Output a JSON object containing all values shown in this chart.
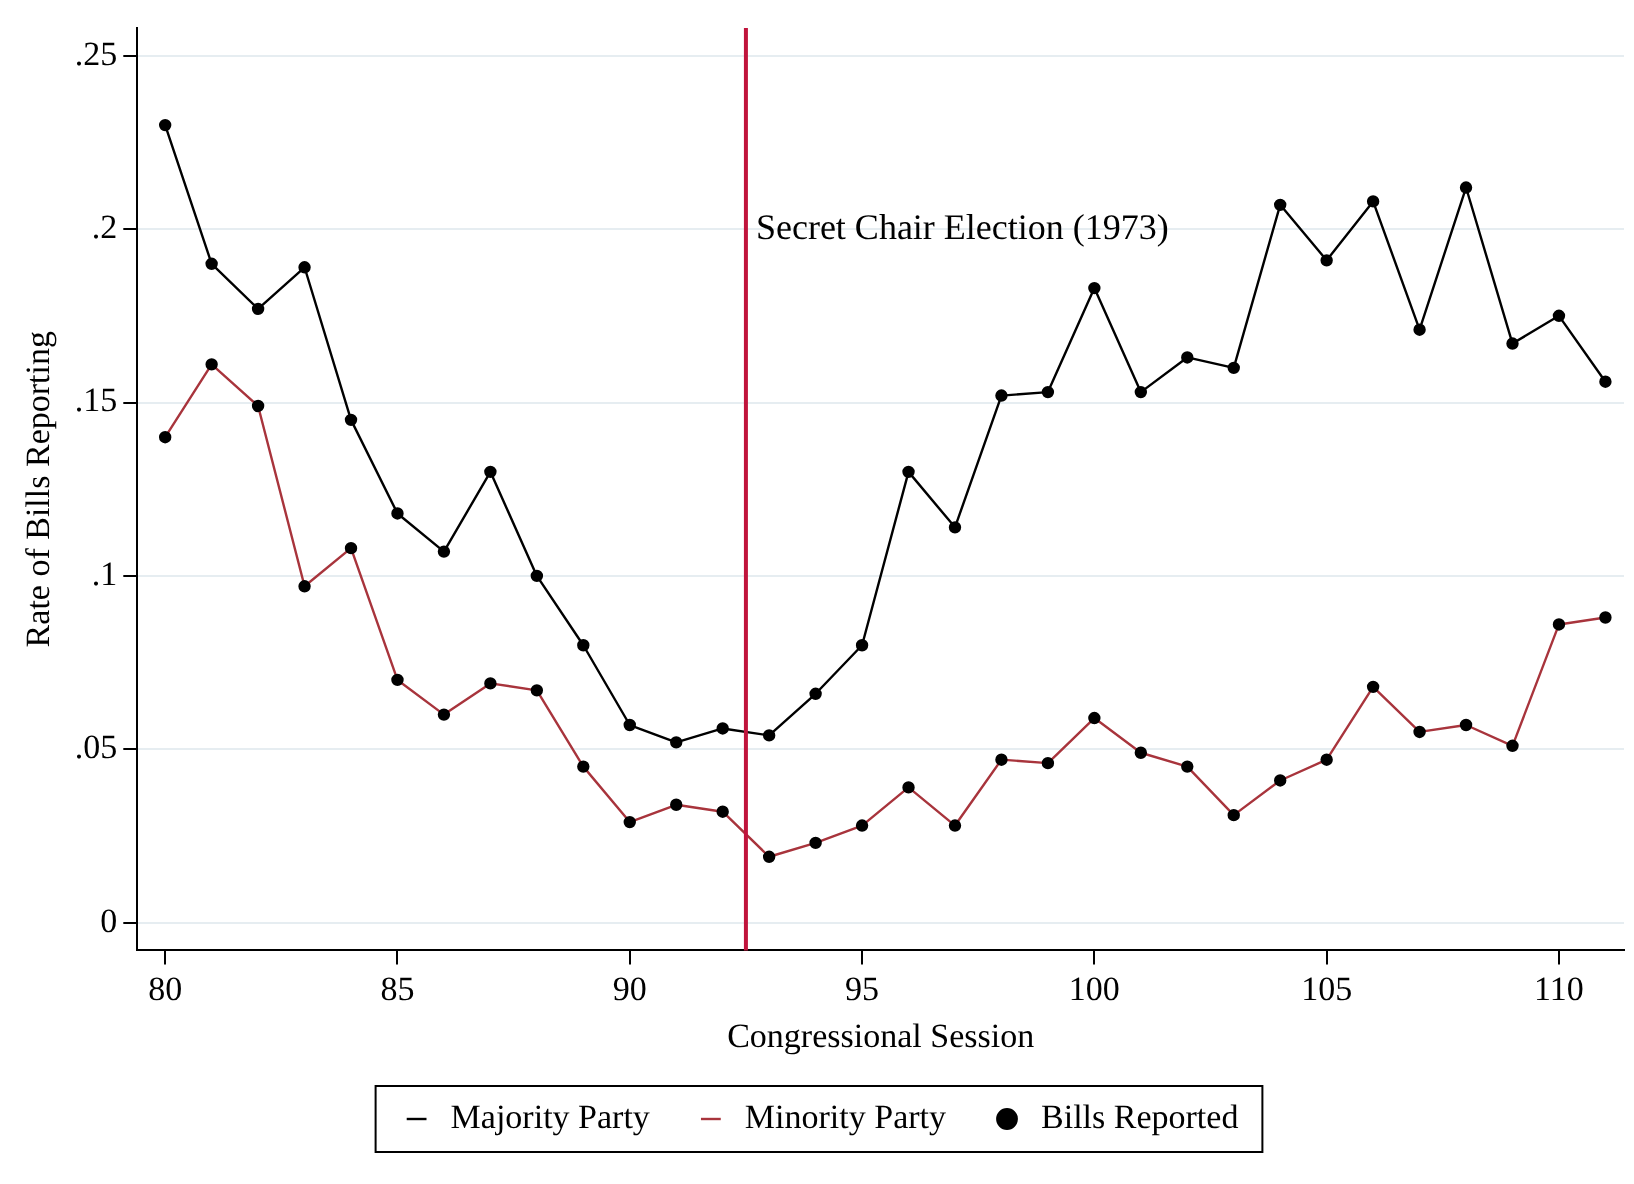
{
  "chart_data": {
    "type": "line",
    "xlabel": "Congressional Session",
    "ylabel": "Rate of Bills Reporting",
    "xlim": [
      79.4,
      111.4
    ],
    "xticks": [
      80,
      85,
      90,
      95,
      100,
      105,
      110
    ],
    "ylim": [
      -0.008,
      0.258
    ],
    "yticks": [
      {
        "value": 0,
        "label": "0"
      },
      {
        "value": 0.05,
        "label": ".05"
      },
      {
        "value": 0.1,
        "label": ".1"
      },
      {
        "value": 0.15,
        "label": ".15"
      },
      {
        "value": 0.2,
        "label": ".2"
      },
      {
        "value": 0.25,
        "label": ".25"
      }
    ],
    "grid": "y",
    "legend": "bottom",
    "marker": "none",
    "line_style": "solid",
    "x": [
      80,
      81,
      82,
      83,
      84,
      85,
      86,
      87,
      88,
      89,
      90,
      91,
      92,
      93,
      94,
      95,
      96,
      97,
      98,
      99,
      100,
      101,
      102,
      103,
      104,
      105,
      106,
      107,
      108,
      109,
      110,
      111
    ],
    "series": [
      {
        "name": "Majority Party",
        "color": "#000000",
        "values": [
          0.23,
          0.19,
          0.177,
          0.189,
          0.145,
          0.118,
          0.107,
          0.13,
          0.1,
          0.08,
          0.057,
          0.052,
          0.056,
          0.054,
          0.066,
          0.08,
          0.13,
          0.114,
          0.152,
          0.153,
          0.183,
          0.153,
          0.163,
          0.16,
          0.207,
          0.191,
          0.208,
          0.171,
          0.212,
          0.167,
          0.175,
          0.156
        ]
      },
      {
        "name": "Minority Party",
        "color": "#a8343c",
        "values": [
          0.14,
          0.161,
          0.149,
          0.097,
          0.108,
          0.07,
          0.06,
          0.069,
          0.067,
          0.045,
          0.029,
          0.034,
          0.032,
          0.019,
          0.023,
          0.028,
          0.039,
          0.028,
          0.047,
          0.046,
          0.059,
          0.049,
          0.045,
          0.031,
          0.041,
          0.047,
          0.068,
          0.055,
          0.057,
          0.051,
          0.086,
          0.088
        ]
      },
      {
        "name": "Bills Reported",
        "type": "scatter",
        "marker": "circle",
        "color": "#000000",
        "x": [
          80,
          81,
          82,
          83,
          84,
          85,
          86,
          87,
          88,
          89,
          90,
          91,
          92,
          93,
          94,
          95,
          96,
          97,
          98,
          99,
          100,
          101,
          102,
          103,
          104,
          105,
          106,
          107,
          108,
          109,
          110,
          111,
          80,
          81,
          82,
          83,
          84,
          85,
          86,
          87,
          88,
          89,
          90,
          91,
          92,
          93,
          94,
          95,
          96,
          97,
          98,
          99,
          100,
          101,
          102,
          103,
          104,
          105,
          106,
          107,
          108,
          109,
          110,
          111
        ],
        "values": [
          0.23,
          0.19,
          0.177,
          0.189,
          0.145,
          0.118,
          0.107,
          0.13,
          0.1,
          0.08,
          0.057,
          0.052,
          0.056,
          0.054,
          0.066,
          0.08,
          0.13,
          0.114,
          0.152,
          0.153,
          0.183,
          0.153,
          0.163,
          0.16,
          0.207,
          0.191,
          0.208,
          0.171,
          0.212,
          0.167,
          0.175,
          0.156,
          0.14,
          0.161,
          0.149,
          0.097,
          0.108,
          0.07,
          0.06,
          0.069,
          0.067,
          0.045,
          0.029,
          0.034,
          0.032,
          0.019,
          0.023,
          0.028,
          0.039,
          0.028,
          0.047,
          0.046,
          0.059,
          0.049,
          0.045,
          0.031,
          0.041,
          0.047,
          0.068,
          0.055,
          0.057,
          0.051,
          0.086,
          0.088
        ]
      }
    ],
    "ref_lines": [
      {
        "axis": "x",
        "value": 92.5,
        "color": "#c0143c"
      }
    ],
    "annotations": [
      {
        "text": "Secret Chair Election (1973)",
        "x": 92.5,
        "y": 0.2
      }
    ]
  }
}
